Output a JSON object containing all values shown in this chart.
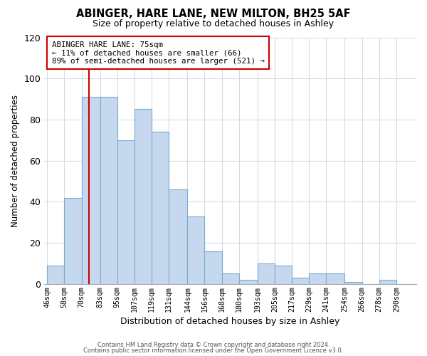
{
  "title": "ABINGER, HARE LANE, NEW MILTON, BH25 5AF",
  "subtitle": "Size of property relative to detached houses in Ashley",
  "xlabel": "Distribution of detached houses by size in Ashley",
  "ylabel": "Number of detached properties",
  "bin_labels": [
    "46sqm",
    "58sqm",
    "70sqm",
    "83sqm",
    "95sqm",
    "107sqm",
    "119sqm",
    "131sqm",
    "144sqm",
    "156sqm",
    "168sqm",
    "180sqm",
    "193sqm",
    "205sqm",
    "217sqm",
    "229sqm",
    "241sqm",
    "254sqm",
    "266sqm",
    "278sqm",
    "290sqm"
  ],
  "bin_edges": [
    46,
    58,
    70,
    83,
    95,
    107,
    119,
    131,
    144,
    156,
    168,
    180,
    193,
    205,
    217,
    229,
    241,
    254,
    266,
    278,
    290
  ],
  "bar_heights": [
    9,
    42,
    91,
    91,
    70,
    85,
    74,
    46,
    33,
    16,
    5,
    2,
    10,
    9,
    3,
    5,
    5,
    1,
    0,
    2
  ],
  "bar_color": "#c5d8ee",
  "bar_edge_color": "#7aaad0",
  "vline_x": 75,
  "vline_color": "#cc0000",
  "ylim": [
    0,
    120
  ],
  "ann_line1": "ABINGER HARE LANE: 75sqm",
  "ann_line2": "← 11% of detached houses are smaller (66)",
  "ann_line3": "89% of semi-detached houses are larger (521) →",
  "footer1": "Contains HM Land Registry data © Crown copyright and database right 2024.",
  "footer2": "Contains public sector information licensed under the Open Government Licence v3.0.",
  "bg_color": "#ffffff",
  "grid_color": "#d0dce8"
}
